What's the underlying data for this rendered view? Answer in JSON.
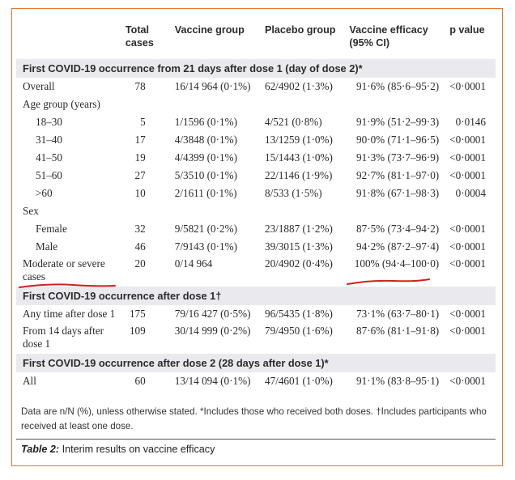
{
  "headers": {
    "col0": "",
    "total_cases": [
      "Total",
      "cases"
    ],
    "vaccine_group": "Vaccine group",
    "placebo_group": "Placebo group",
    "vaccine_efficacy": [
      "Vaccine efficacy",
      "(95% CI)"
    ],
    "p_value": "p value"
  },
  "section1": {
    "title": "First COVID-19 occurrence from 21 days after dose 1 (day of dose 2)*",
    "rows": [
      {
        "label": "Overall",
        "total": "78",
        "vaccine": "16/14 964 (0·1%)",
        "placebo": "62/4902 (1·3%)",
        "efficacy": "91·6% (85·6–95·2)",
        "p": "<0·0001"
      },
      {
        "label": "Age group (years)",
        "total": "",
        "vaccine": "",
        "placebo": "",
        "efficacy": "",
        "p": ""
      },
      {
        "label": "18–30",
        "total": "5",
        "vaccine": "1/1596 (0·1%)",
        "placebo": "4/521 (0·8%)",
        "efficacy": "91·9% (51·2–99·3)",
        "p": "0·0146"
      },
      {
        "label": "31–40",
        "total": "17",
        "vaccine": "4/3848 (0·1%)",
        "placebo": "13/1259 (1·0%)",
        "efficacy": "90·0% (71·1–96·5)",
        "p": "<0·0001"
      },
      {
        "label": "41–50",
        "total": "19",
        "vaccine": "4/4399 (0·1%)",
        "placebo": "15/1443 (1·0%)",
        "efficacy": "91·3% (73·7–96·9)",
        "p": "<0·0001"
      },
      {
        "label": "51–60",
        "total": "27",
        "vaccine": "5/3510 (0·1%)",
        "placebo": "22/1146 (1·9%)",
        "efficacy": "92·7% (81·1–97·0)",
        "p": "<0·0001"
      },
      {
        "label": ">60",
        "total": "10",
        "vaccine": "2/1611 (0·1%)",
        "placebo": "8/533 (1·5%)",
        "efficacy": "91·8% (67·1–98·3)",
        "p": "0·0004"
      },
      {
        "label": "Sex",
        "total": "",
        "vaccine": "",
        "placebo": "",
        "efficacy": "",
        "p": ""
      },
      {
        "label": "Female",
        "total": "32",
        "vaccine": "9/5821 (0·2%)",
        "placebo": "23/1887 (1·2%)",
        "efficacy": "87·5% (73·4–94·2)",
        "p": "<0·0001"
      },
      {
        "label": "Male",
        "total": "46",
        "vaccine": "7/9143 (0·1%)",
        "placebo": "39/3015 (1·3%)",
        "efficacy": "94·2% (87·2–97·4)",
        "p": "<0·0001"
      },
      {
        "label": "Moderate or severe cases",
        "total": "20",
        "vaccine": "0/14 964",
        "placebo": "20/4902 (0·4%)",
        "efficacy": "100% (94·4–100·0)",
        "p": "<0·0001"
      }
    ]
  },
  "section2": {
    "title": "First COVID-19 occurrence after dose 1†",
    "rows": [
      {
        "label": "Any time after dose 1",
        "total": "175",
        "vaccine": "79/16 427 (0·5%)",
        "placebo": "96/5435 (1·8%)",
        "efficacy": "73·1% (63·7–80·1)",
        "p": "<0·0001"
      },
      {
        "label": "From 14 days after dose 1",
        "total": "109",
        "vaccine": "30/14 999 (0·2%)",
        "placebo": "79/4950 (1·6%)",
        "efficacy": "87·6% (81·1–91·8)",
        "p": "<0·0001"
      }
    ]
  },
  "section3": {
    "title": "First COVID-19 occurrence after dose 2 (28 days after dose 1)*",
    "rows": [
      {
        "label": "All",
        "total": "60",
        "vaccine": "13/14 094 (0·1%)",
        "placebo": "47/4601 (1·0%)",
        "efficacy": "91·1% (83·8–95·1)",
        "p": "<0·0001"
      }
    ]
  },
  "footnote": "Data are n/N (%), unless otherwise stated. *Includes those who received both doses. †Includes participants who received at least one dose.",
  "caption": {
    "label": "Table 2:",
    "text": " Interim results on vaccine efficacy"
  },
  "colors": {
    "border": "#e07a2a",
    "band": "#eaeaee",
    "annotation": "#d41f1f"
  }
}
